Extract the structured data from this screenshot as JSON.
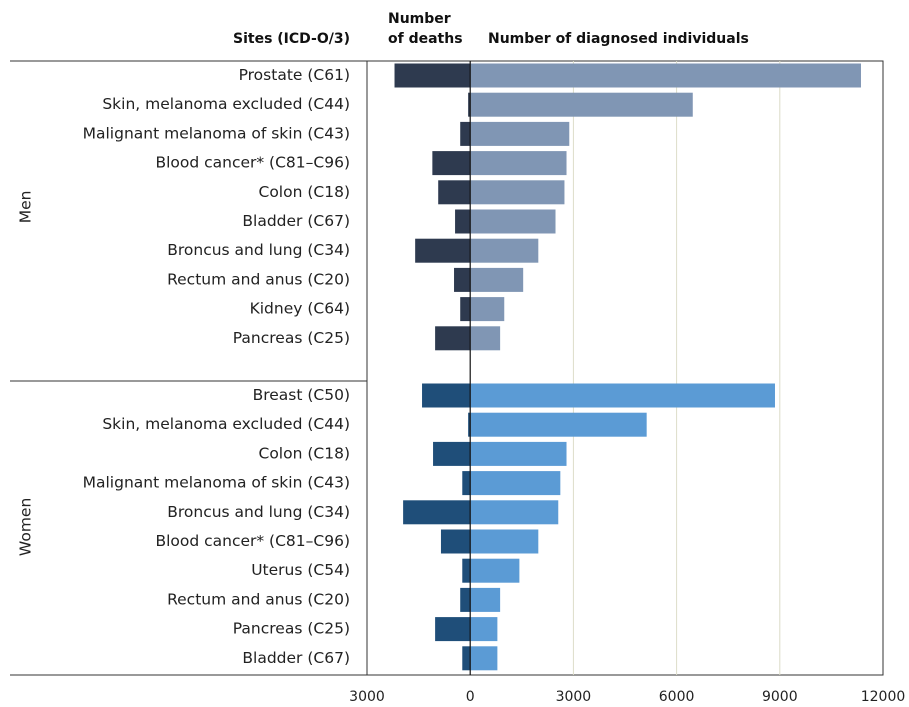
{
  "chart_data": {
    "type": "butterfly-bar",
    "category_header": "Sites (ICD-O/3)",
    "left_header": "Number of deaths",
    "right_header": "Number of diagnosed individuals",
    "xlim": [
      -3000,
      12000
    ],
    "xticks": [
      {
        "value": -3000,
        "label": "3000"
      },
      0,
      3000,
      6000,
      9000,
      12000
    ],
    "grid": true,
    "groups": [
      {
        "name": "Men",
        "death_color": "#2e3a4f",
        "diagnosed_color": "#8096b4",
        "categories": [
          "Prostate (C61)",
          "Skin, melanoma excluded (C44)",
          "Malignant melanoma of skin (C43)",
          "Blood cancer* (C81–C96)",
          "Colon (C18)",
          "Bladder (C67)",
          "Broncus and lung (C34)",
          "Rectum and anus (C20)",
          "Kidney (C64)",
          "Pancreas (C25)"
        ],
        "deaths": [
          2200,
          60,
          290,
          1100,
          930,
          440,
          1600,
          470,
          290,
          1020
        ],
        "diagnosed": [
          11360,
          6470,
          2880,
          2800,
          2740,
          2480,
          1980,
          1540,
          990,
          870
        ]
      },
      {
        "name": "Women",
        "death_color": "#1f4e79",
        "diagnosed_color": "#5b9bd5",
        "categories": [
          "Breast (C50)",
          "Skin, melanoma excluded (C44)",
          "Colon (C18)",
          "Malignant melanoma of skin (C43)",
          "Broncus and lung (C34)",
          "Blood cancer* (C81–C96)",
          "Uterus (C54)",
          "Rectum and anus (C20)",
          "Pancreas (C25)",
          "Bladder (C67)"
        ],
        "deaths": [
          1400,
          60,
          1080,
          230,
          1950,
          850,
          230,
          290,
          1020,
          230
        ],
        "diagnosed": [
          8860,
          5130,
          2800,
          2620,
          2560,
          1980,
          1430,
          870,
          790,
          790
        ]
      }
    ]
  }
}
